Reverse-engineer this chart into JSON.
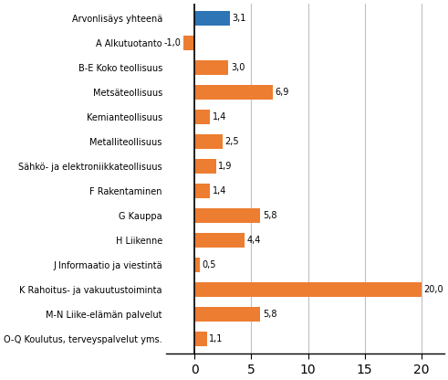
{
  "categories": [
    "Arvonlisäys yhteenä",
    "A Alkutuotanto",
    "B-E Koko teollisuus",
    "Metsäteollisuus",
    "Kemianteollisuus",
    "Metalliteollisuus",
    "Sähkö- ja elektroniikkateollisuus",
    "F Rakentaminen",
    "G Kauppa",
    "H Liikenne",
    "J Informaatio ja viestintä",
    "K Rahoitus- ja vakuutustoiminta",
    "M-N Liike-elämän palvelut",
    "O-Q Koulutus, terveyspalvelut yms."
  ],
  "values": [
    3.1,
    -1.0,
    3.0,
    6.9,
    1.4,
    2.5,
    1.9,
    1.4,
    5.8,
    4.4,
    0.5,
    20.0,
    5.8,
    1.1
  ],
  "bar_colors": [
    "#2e75b6",
    "#ed7d31",
    "#ed7d31",
    "#ed7d31",
    "#ed7d31",
    "#ed7d31",
    "#ed7d31",
    "#ed7d31",
    "#ed7d31",
    "#ed7d31",
    "#ed7d31",
    "#ed7d31",
    "#ed7d31",
    "#ed7d31"
  ],
  "xlim": [
    -2.5,
    22
  ],
  "xticks": [
    0,
    5,
    10,
    15,
    20
  ],
  "bar_height": 0.6,
  "label_fontsize": 7.0,
  "value_fontsize": 7.0,
  "tick_fontsize": 7.5,
  "grid_color": "#c0c0c0",
  "background_color": "#ffffff"
}
